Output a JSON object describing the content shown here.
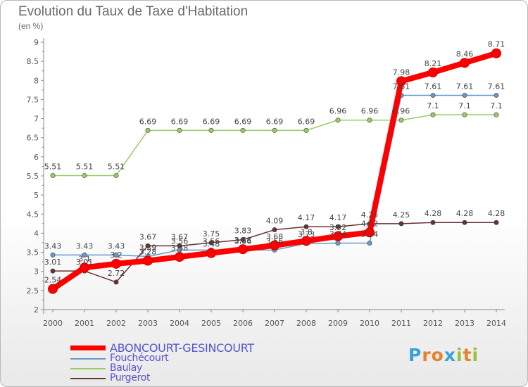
{
  "chart_data": {
    "type": "line",
    "title": "Evolution du Taux de Taxe d'Habitation",
    "ylabel": "(en %)",
    "xlabel": "",
    "x": [
      "2000",
      "2001",
      "2002",
      "2003",
      "2004",
      "2005",
      "2006",
      "2007",
      "2008",
      "2009",
      "2010",
      "2011",
      "2012",
      "2013",
      "2014"
    ],
    "ylim": [
      2,
      9
    ],
    "yticks": [
      "2",
      "2.5",
      "3",
      "3.5",
      "4",
      "4.5",
      "5",
      "5.5",
      "6",
      "6.5",
      "7",
      "7.5",
      "8",
      "8.5",
      "9"
    ],
    "grid": false,
    "legend_position": "bottom-left",
    "series": [
      {
        "name": "Fouchécourt",
        "color": "#6699cc",
        "values": [
          3.43,
          3.43,
          3.43,
          3.39,
          3.56,
          3.56,
          3.56,
          3.56,
          3.73,
          3.74,
          3.74,
          7.61,
          7.61,
          7.61,
          7.61
        ],
        "labels": [
          "3.43",
          "3.43",
          "3.43",
          "3.39",
          "3.56",
          "3.56",
          "3.56",
          "3.56",
          "3.73",
          "3.74",
          "3.74",
          "7.61",
          "7.61",
          "7.61",
          "7.61"
        ]
      },
      {
        "name": "Baulay",
        "color": "#99cc66",
        "values": [
          5.51,
          5.51,
          5.51,
          6.69,
          6.69,
          6.69,
          6.69,
          6.69,
          6.69,
          6.96,
          6.96,
          6.96,
          7.1,
          7.1,
          7.1
        ],
        "labels": [
          "5.51",
          "5.51",
          "5.51",
          "6.69",
          "6.69",
          "6.69",
          "6.69",
          "6.69",
          "6.69",
          "6.96",
          "6.96",
          "6.96",
          "7.1",
          "7.1",
          "7.1"
        ]
      },
      {
        "name": "Purgerot",
        "color": "#663333",
        "values": [
          3.01,
          3.01,
          2.72,
          3.67,
          3.67,
          3.75,
          3.83,
          4.09,
          4.17,
          4.17,
          4.25,
          4.25,
          4.28,
          4.28,
          4.28
        ],
        "labels": [
          "3.01",
          "3.01",
          "2.72",
          "3.67",
          "3.67",
          "3.75",
          "3.83",
          "4.09",
          "4.17",
          "4.17",
          "4.25",
          "4.25",
          "4.28",
          "4.28",
          "4.28"
        ]
      },
      {
        "name": "ABONCOURT-GESINCOURT",
        "color": "#ff0000",
        "values": [
          2.54,
          3.1,
          3.2,
          3.28,
          3.38,
          3.48,
          3.58,
          3.68,
          3.8,
          3.92,
          4.02,
          7.98,
          8.21,
          8.46,
          8.71
        ],
        "labels": [
          "2.54",
          "3.1",
          "3.2",
          "3.28",
          "3.38",
          "3.48",
          "3.58",
          "3.68",
          "3.8",
          "3.92",
          "4.02",
          "7.98",
          "8.21",
          "8.46",
          "8.71"
        ]
      }
    ]
  },
  "legend": {
    "items": [
      {
        "name": "ABONCOURT-GESINCOURT",
        "color": "#ff0000"
      },
      {
        "name": "Fouchécourt",
        "color": "#6699cc"
      },
      {
        "name": "Baulay",
        "color": "#99cc66"
      },
      {
        "name": "Purgerot",
        "color": "#663333"
      }
    ]
  },
  "brand": {
    "letters": [
      "P",
      "r",
      "o",
      "x",
      "i",
      "t",
      "i"
    ],
    "colors": [
      "#3aa0d8",
      "#e8822a",
      "#e8822a",
      "#3aa0d8",
      "#99c23a",
      "#e8822a",
      "#99c23a"
    ]
  }
}
